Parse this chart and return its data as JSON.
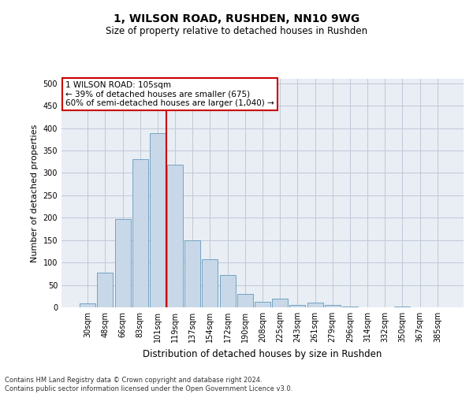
{
  "title": "1, WILSON ROAD, RUSHDEN, NN10 9WG",
  "subtitle": "Size of property relative to detached houses in Rushden",
  "xlabel": "Distribution of detached houses by size in Rushden",
  "ylabel": "Number of detached properties",
  "footer_line1": "Contains HM Land Registry data © Crown copyright and database right 2024.",
  "footer_line2": "Contains public sector information licensed under the Open Government Licence v3.0.",
  "bar_labels": [
    "30sqm",
    "48sqm",
    "66sqm",
    "83sqm",
    "101sqm",
    "119sqm",
    "137sqm",
    "154sqm",
    "172sqm",
    "190sqm",
    "208sqm",
    "225sqm",
    "243sqm",
    "261sqm",
    "279sqm",
    "296sqm",
    "314sqm",
    "332sqm",
    "350sqm",
    "367sqm",
    "385sqm"
  ],
  "bar_values": [
    8,
    77,
    197,
    330,
    388,
    318,
    150,
    107,
    72,
    30,
    12,
    19,
    6,
    10,
    5,
    2,
    0,
    0,
    1,
    0,
    0
  ],
  "bar_color": "#c8d8e8",
  "bar_edge_color": "#6699bb",
  "vline_x": 4.5,
  "vline_color": "#cc0000",
  "annotation_text": "1 WILSON ROAD: 105sqm\n← 39% of detached houses are smaller (675)\n60% of semi-detached houses are larger (1,040) →",
  "annotation_box_color": "#ffffff",
  "annotation_box_edge_color": "#cc0000",
  "ylim": [
    0,
    510
  ],
  "yticks": [
    0,
    50,
    100,
    150,
    200,
    250,
    300,
    350,
    400,
    450,
    500
  ],
  "grid_color": "#c0c8d8",
  "background_color": "#e8eef4",
  "title_fontsize": 10,
  "subtitle_fontsize": 8.5,
  "ylabel_fontsize": 8,
  "xlabel_fontsize": 8.5,
  "tick_fontsize": 7,
  "annotation_fontsize": 7.5,
  "footer_fontsize": 6
}
